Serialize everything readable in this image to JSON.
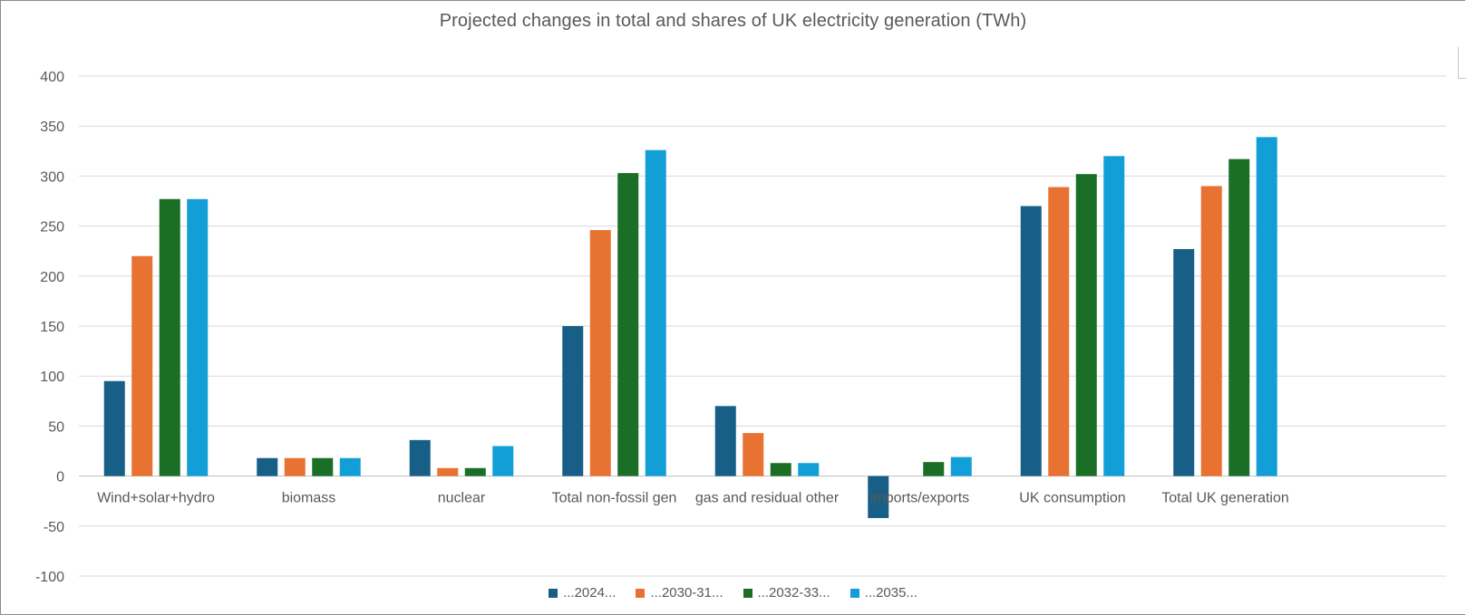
{
  "chart_data": {
    "type": "bar",
    "title": "Projected changes in total and shares of UK electricity generation (TWh)",
    "categories": [
      "Wind+solar+hydro",
      "biomass",
      "nuclear",
      "Total non-fossil gen",
      "gas and residual other",
      "imports/exports",
      "UK consumption",
      "Total UK generation"
    ],
    "series": [
      {
        "name": "...2024...",
        "color": "#175f86",
        "values": [
          95,
          18,
          36,
          150,
          70,
          -42,
          270,
          227
        ]
      },
      {
        "name": "...2030-31...",
        "color": "#e87232",
        "values": [
          220,
          18,
          8,
          246,
          43,
          0,
          289,
          290
        ]
      },
      {
        "name": "...2032-33...",
        "color": "#1a6e26",
        "values": [
          277,
          18,
          8,
          303,
          13,
          14,
          302,
          317
        ]
      },
      {
        "name": "...2035...",
        "color": "#129fd8",
        "values": [
          277,
          18,
          30,
          326,
          13,
          19,
          320,
          339
        ]
      }
    ],
    "y_ticks": [
      400,
      350,
      300,
      250,
      200,
      150,
      100,
      50,
      0,
      -50,
      -100
    ],
    "ylim": [
      -100,
      400
    ],
    "grid": true,
    "legend_position": "bottom"
  }
}
